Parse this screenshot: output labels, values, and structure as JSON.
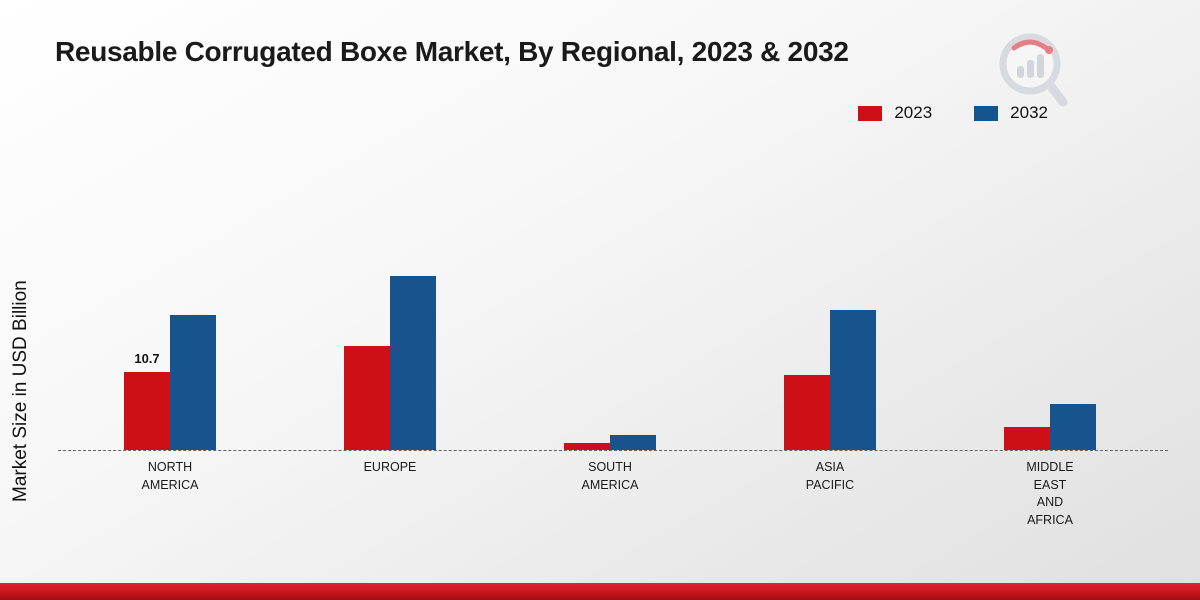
{
  "title": "Reusable Corrugated Boxe Market, By Regional, 2023 & 2032",
  "y_axis_label": "Market Size in USD Billion",
  "legend": [
    {
      "label": "2023",
      "color": "#cc1016"
    },
    {
      "label": "2032",
      "color": "#17538d"
    }
  ],
  "colors": {
    "series_2023": "#cc1016",
    "series_2032": "#17538d",
    "bottom_strip": "#c8141d"
  },
  "chart_data": {
    "type": "bar",
    "categories": [
      "NORTH AMERICA",
      "EUROPE",
      "SOUTH AMERICA",
      "ASIA PACIFIC",
      "MIDDLE EAST AND AFRICA"
    ],
    "series": [
      {
        "name": "2023",
        "color": "#cc1016",
        "values": [
          10.7,
          14.3,
          1.0,
          10.2,
          3.1
        ]
      },
      {
        "name": "2032",
        "color": "#17538d",
        "values": [
          18.5,
          23.8,
          2.0,
          19.2,
          6.3
        ]
      }
    ],
    "title": "Reusable Corrugated Boxe Market, By Regional, 2023 & 2032",
    "xlabel": "",
    "ylabel": "Market Size in USD Billion",
    "ylim": [
      0,
      26
    ],
    "grid": false,
    "legend_position": "top-right",
    "baseline_style": "dashed",
    "annotations": [
      {
        "series": "2023",
        "category": "NORTH AMERICA",
        "text": "10.7"
      }
    ]
  }
}
